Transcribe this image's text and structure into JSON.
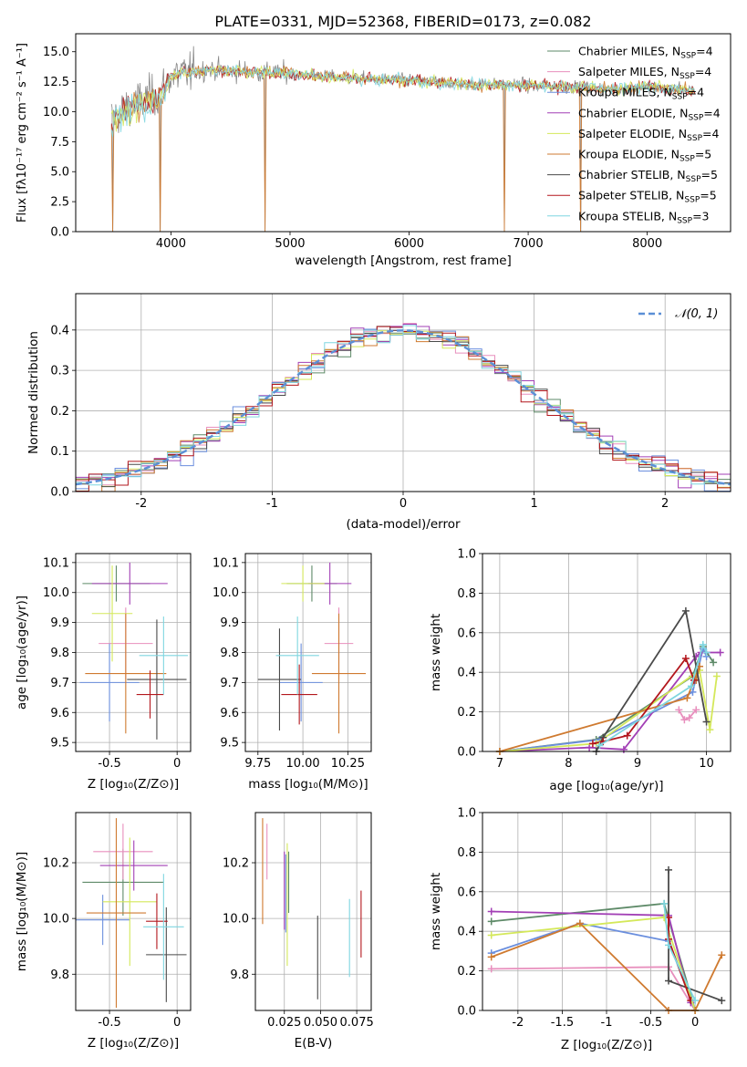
{
  "colors": [
    "#5e8a68",
    "#e88fbd",
    "#6b8fde",
    "#a23fb5",
    "#d4e85a",
    "#cf7a30",
    "#4a4a4a",
    "#b3171d",
    "#7fd6e0",
    "#888888"
  ],
  "chart_data": [
    {
      "id": "spectrum",
      "type": "line",
      "title": "PLATE=0331, MJD=52368, FIBERID=0173, z=0.082",
      "xlabel": "wavelength [Angstrom, rest frame]",
      "ylabel": "Flux [fλ10⁻¹⁷ erg cm⁻² s⁻¹ A⁻¹]",
      "xlim": [
        3200,
        8700
      ],
      "ylim": [
        0,
        16.5
      ],
      "xticks": [
        4000,
        5000,
        6000,
        7000,
        8000
      ],
      "yticks": [
        0.0,
        2.5,
        5.0,
        7.5,
        10.0,
        12.5,
        15.0
      ],
      "grid": false,
      "legend_position": "upper right",
      "legend": [
        "Chabrier MILES, N_SSP=4",
        "Salpeter MILES, N_SSP=4",
        "Kroupa MILES, N_SSP=4",
        "Chabrier ELODIE, N_SSP=4",
        "Salpeter ELODIE, N_SSP=4",
        "Kroupa ELODIE, N_SSP=5",
        "Chabrier STELIB, N_SSP=5",
        "Salpeter STELIB, N_SSP=5",
        "Kroupa STELIB, N_SSP=3"
      ],
      "legend_labels": [
        {
          "main": "Chabrier MILES, N",
          "sub": "SSP",
          "tail": "=4"
        },
        {
          "main": "Salpeter MILES, N",
          "sub": "SSP",
          "tail": "=4"
        },
        {
          "main": "Kroupa MILES, N",
          "sub": "SSP",
          "tail": "=4"
        },
        {
          "main": "Chabrier ELODIE, N",
          "sub": "SSP",
          "tail": "=4"
        },
        {
          "main": "Salpeter ELODIE, N",
          "sub": "SSP",
          "tail": "=4"
        },
        {
          "main": "Kroupa ELODIE, N",
          "sub": "SSP",
          "tail": "=5"
        },
        {
          "main": "Chabrier STELIB, N",
          "sub": "SSP",
          "tail": "=5"
        },
        {
          "main": "Salpeter STELIB, N",
          "sub": "SSP",
          "tail": "=5"
        },
        {
          "main": "Kroupa STELIB, N",
          "sub": "SSP",
          "tail": "=3"
        }
      ],
      "series_continuum": {
        "x": [
          3500,
          3700,
          3900,
          4000,
          4300,
          4800,
          5500,
          6000,
          6500,
          7000,
          7500,
          7700,
          8000,
          8400
        ],
        "y": [
          9.5,
          10.8,
          11.5,
          13.0,
          13.5,
          13.3,
          12.8,
          12.6,
          12.3,
          12.2,
          12.0,
          11.8,
          12.1,
          11.7
        ]
      },
      "dips": [
        {
          "x": 3510,
          "y": 0
        },
        {
          "x": 3910,
          "y": 0
        },
        {
          "x": 4790,
          "y": 0
        },
        {
          "x": 6800,
          "y": 0
        },
        {
          "x": 7440,
          "y": 0
        }
      ]
    },
    {
      "id": "residuals",
      "type": "histogram",
      "xlabel": "(data-model)/error",
      "ylabel": "Normed distribution",
      "xlim": [
        -2.5,
        2.5
      ],
      "ylim": [
        0,
        0.49
      ],
      "xticks": [
        -2,
        -1,
        0,
        1,
        2
      ],
      "yticks": [
        0.0,
        0.1,
        0.2,
        0.3,
        0.4
      ],
      "grid": true,
      "bin_width": 0.1,
      "legend": [
        "𝒩(0, 1)"
      ],
      "legend_position": "upper right",
      "normal_curve": {
        "mean": 0,
        "sigma": 1
      }
    },
    {
      "id": "age-vs-z",
      "type": "errorbar",
      "xlabel": "Z [log₁₀(Z/Z⊙)]",
      "ylabel": "age [log₁₀(age/yr)]",
      "xlim": [
        -0.75,
        0.1
      ],
      "ylim": [
        9.47,
        10.13
      ],
      "xticks": [
        -0.5,
        0.0
      ],
      "yticks": [
        9.5,
        9.6,
        9.7,
        9.8,
        9.9,
        10.0,
        10.1
      ],
      "grid": true,
      "points": [
        {
          "x": -0.45,
          "y": 10.03,
          "xerr": 0.25,
          "yerr": 0.06
        },
        {
          "x": -0.38,
          "y": 9.83,
          "xerr": 0.2,
          "yerr": 0.12
        },
        {
          "x": -0.5,
          "y": 9.7,
          "xerr": 0.22,
          "yerr": 0.13
        },
        {
          "x": -0.35,
          "y": 10.03,
          "xerr": 0.28,
          "yerr": 0.07
        },
        {
          "x": -0.48,
          "y": 9.93,
          "xerr": 0.15,
          "yerr": 0.16
        },
        {
          "x": -0.38,
          "y": 9.73,
          "xerr": 0.3,
          "yerr": 0.2
        },
        {
          "x": -0.15,
          "y": 9.71,
          "xerr": 0.22,
          "yerr": 0.2
        },
        {
          "x": -0.2,
          "y": 9.66,
          "xerr": 0.1,
          "yerr": 0.08
        },
        {
          "x": -0.1,
          "y": 9.79,
          "xerr": 0.18,
          "yerr": 0.13
        }
      ]
    },
    {
      "id": "age-vs-mass",
      "type": "errorbar",
      "xlabel": "mass [log₁₀(M/M⊙)]",
      "xlim": [
        9.68,
        10.38
      ],
      "ylim": [
        9.47,
        10.13
      ],
      "xticks": [
        9.75,
        10.0,
        10.25
      ],
      "yticks": [
        9.5,
        9.6,
        9.7,
        9.8,
        9.9,
        10.0,
        10.1
      ],
      "grid": true,
      "points": [
        {
          "x": 10.05,
          "y": 10.03,
          "xerr": 0.14,
          "yerr": 0.06
        },
        {
          "x": 10.2,
          "y": 9.83,
          "xerr": 0.08,
          "yerr": 0.12
        },
        {
          "x": 9.99,
          "y": 9.7,
          "xerr": 0.12,
          "yerr": 0.13
        },
        {
          "x": 10.15,
          "y": 10.03,
          "xerr": 0.12,
          "yerr": 0.07
        },
        {
          "x": 10.0,
          "y": 10.03,
          "xerr": 0.12,
          "yerr": 0.06
        },
        {
          "x": 10.2,
          "y": 9.73,
          "xerr": 0.15,
          "yerr": 0.2
        },
        {
          "x": 9.87,
          "y": 9.71,
          "xerr": 0.12,
          "yerr": 0.17
        },
        {
          "x": 9.98,
          "y": 9.66,
          "xerr": 0.1,
          "yerr": 0.1
        },
        {
          "x": 9.97,
          "y": 9.79,
          "xerr": 0.12,
          "yerr": 0.13
        }
      ]
    },
    {
      "id": "weight-vs-age",
      "type": "line",
      "xlabel": "age [log₁₀(age/yr)]",
      "ylabel": "mass weight",
      "xlim": [
        6.75,
        10.35
      ],
      "ylim": [
        0,
        1.0
      ],
      "xticks": [
        7,
        8,
        9,
        10
      ],
      "yticks": [
        0.0,
        0.2,
        0.4,
        0.6,
        0.8,
        1.0
      ],
      "grid": true,
      "series": [
        {
          "x": [
            7.0,
            8.4,
            9.8,
            9.95,
            10.1
          ],
          "y": [
            0.0,
            0.06,
            0.38,
            0.53,
            0.45
          ]
        },
        {
          "x": [
            9.6,
            9.68,
            9.75,
            9.85
          ],
          "y": [
            0.21,
            0.16,
            0.17,
            0.21
          ]
        },
        {
          "x": [
            7.0,
            8.45,
            9.8,
            9.95,
            10.0
          ],
          "y": [
            0.0,
            0.06,
            0.3,
            0.52,
            0.48
          ]
        },
        {
          "x": [
            7.0,
            8.3,
            8.8,
            9.85,
            9.92,
            10.2
          ],
          "y": [
            0.0,
            0.02,
            0.01,
            0.48,
            0.5,
            0.5
          ]
        },
        {
          "x": [
            7.0,
            8.4,
            9.9,
            10.05,
            10.15
          ],
          "y": [
            0.0,
            0.04,
            0.41,
            0.11,
            0.38
          ]
        },
        {
          "x": [
            7.0,
            9.72,
            9.9,
            9.85
          ],
          "y": [
            0.0,
            0.27,
            0.43,
            0.36
          ]
        },
        {
          "x": [
            8.4,
            8.5,
            9.7,
            10.0
          ],
          "y": [
            0.0,
            0.07,
            0.71,
            0.15
          ]
        },
        {
          "x": [
            8.35,
            8.5,
            8.85,
            9.7,
            9.82
          ],
          "y": [
            0.04,
            0.05,
            0.08,
            0.47,
            0.36
          ]
        },
        {
          "x": [
            8.45,
            9.78,
            9.95,
            10.0
          ],
          "y": [
            0.03,
            0.33,
            0.54,
            0.5
          ]
        }
      ]
    },
    {
      "id": "mass-vs-z",
      "type": "errorbar",
      "xlabel": "Z [log₁₀(Z/Z⊙)]",
      "ylabel": "mass [log₁₀(M/M⊙)]",
      "xlim": [
        -0.75,
        0.1
      ],
      "ylim": [
        9.67,
        10.38
      ],
      "xticks": [
        -0.5,
        0.0
      ],
      "yticks": [
        9.8,
        10.0,
        10.2
      ],
      "grid": true,
      "points": [
        {
          "x": -0.4,
          "y": 10.13,
          "xerr": 0.3,
          "yerr": 0.12
        },
        {
          "x": -0.4,
          "y": 10.24,
          "xerr": 0.22,
          "yerr": 0.1
        },
        {
          "x": -0.55,
          "y": 9.995,
          "xerr": 0.2,
          "yerr": 0.09
        },
        {
          "x": -0.32,
          "y": 10.19,
          "xerr": 0.25,
          "yerr": 0.09
        },
        {
          "x": -0.35,
          "y": 10.06,
          "xerr": 0.2,
          "yerr": 0.23
        },
        {
          "x": -0.45,
          "y": 10.02,
          "xerr": 0.22,
          "yerr": 0.34
        },
        {
          "x": -0.08,
          "y": 9.87,
          "xerr": 0.15,
          "yerr": 0.17
        },
        {
          "x": -0.15,
          "y": 9.99,
          "xerr": 0.08,
          "yerr": 0.1
        },
        {
          "x": -0.1,
          "y": 9.97,
          "xerr": 0.15,
          "yerr": 0.19
        }
      ]
    },
    {
      "id": "mass-vs-ebv",
      "type": "errorbar",
      "xlabel": "E(B-V)",
      "xlim": [
        0.005,
        0.085
      ],
      "ylim": [
        9.67,
        10.38
      ],
      "xticks": [
        0.025,
        0.05,
        0.075
      ],
      "xtick_labels": [
        "0.025",
        "0.050",
        "0.075"
      ],
      "yticks": [
        9.8,
        10.0,
        10.2
      ],
      "grid": true,
      "points": [
        {
          "x": 0.028,
          "y": 10.13,
          "xerr": 0,
          "yerr": 0.11
        },
        {
          "x": 0.013,
          "y": 10.24,
          "xerr": 0,
          "yerr": 0.1
        },
        {
          "x": 0.026,
          "y": 10.09,
          "xerr": 0,
          "yerr": 0.14
        },
        {
          "x": 0.025,
          "y": 10.1,
          "xerr": 0,
          "yerr": 0.14
        },
        {
          "x": 0.027,
          "y": 10.05,
          "xerr": 0,
          "yerr": 0.22
        },
        {
          "x": 0.01,
          "y": 10.17,
          "xerr": 0,
          "yerr": 0.19
        },
        {
          "x": 0.048,
          "y": 9.86,
          "xerr": 0,
          "yerr": 0.15
        },
        {
          "x": 0.078,
          "y": 9.98,
          "xerr": 0,
          "yerr": 0.12
        },
        {
          "x": 0.07,
          "y": 9.93,
          "xerr": 0,
          "yerr": 0.14
        }
      ]
    },
    {
      "id": "weight-vs-z",
      "type": "line",
      "xlabel": "Z [log₁₀(Z/Z⊙)]",
      "ylabel": "mass weight",
      "xlim": [
        -2.4,
        0.4
      ],
      "ylim": [
        0,
        1.0
      ],
      "xticks": [
        -2.0,
        -1.5,
        -1.0,
        -0.5,
        0.0
      ],
      "yticks": [
        0.0,
        0.2,
        0.4,
        0.6,
        0.8,
        1.0
      ],
      "grid": true,
      "series": [
        {
          "x": [
            -2.3,
            -0.35,
            0.0
          ],
          "y": [
            0.45,
            0.54,
            0.0
          ]
        },
        {
          "x": [
            -2.3,
            -0.3,
            0.0
          ],
          "y": [
            0.21,
            0.22,
            0.0
          ]
        },
        {
          "x": [
            -2.3,
            -1.3,
            -0.3,
            0.0
          ],
          "y": [
            0.29,
            0.44,
            0.35,
            0.0
          ]
        },
        {
          "x": [
            -2.3,
            -0.3,
            -0.05
          ],
          "y": [
            0.5,
            0.48,
            0.04
          ]
        },
        {
          "x": [
            -2.3,
            -0.35,
            0.0
          ],
          "y": [
            0.38,
            0.47,
            0.0
          ]
        },
        {
          "x": [
            -2.3,
            -1.3,
            -0.3,
            0.0,
            0.3
          ],
          "y": [
            0.27,
            0.44,
            0.0,
            0.0,
            0.28
          ]
        },
        {
          "x": [
            -0.3,
            -0.3,
            0.3
          ],
          "y": [
            0.71,
            0.15,
            0.05
          ]
        },
        {
          "x": [
            -0.3,
            -0.3,
            -0.05
          ],
          "y": [
            0.47,
            0.36,
            0.05
          ]
        },
        {
          "x": [
            -0.35,
            -0.3,
            0.0
          ],
          "y": [
            0.54,
            0.33,
            0.05
          ]
        }
      ]
    }
  ]
}
